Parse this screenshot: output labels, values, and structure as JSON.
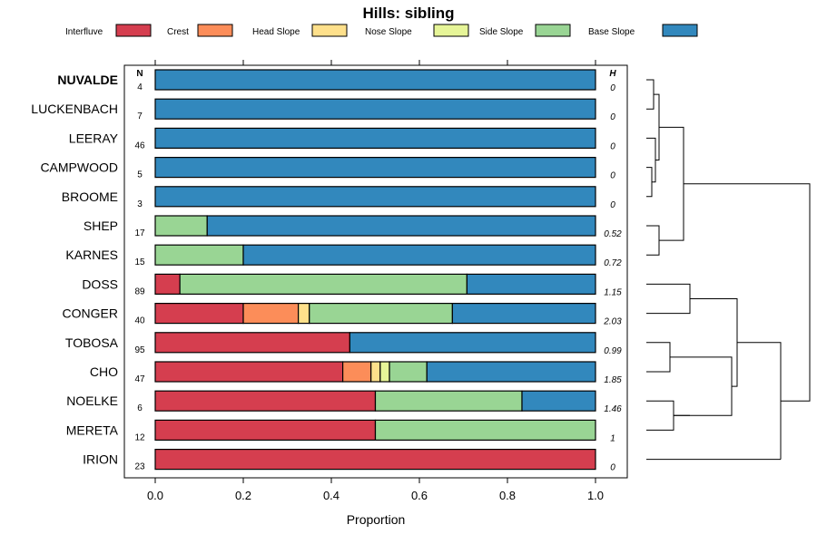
{
  "chart_data": {
    "type": "bar",
    "orientation": "horizontal",
    "stacked": true,
    "title": "Hills: sibling",
    "xlabel": "Proportion",
    "xlim": [
      0,
      1
    ],
    "xticks": [
      "0.0",
      "0.2",
      "0.4",
      "0.6",
      "0.8",
      "1.0"
    ],
    "n_header": "N",
    "h_header": "H",
    "legend_position": "top",
    "series": [
      {
        "name": "Interfluve",
        "color": "#D53E4F"
      },
      {
        "name": "Crest",
        "color": "#FC8D59"
      },
      {
        "name": "Head Slope",
        "color": "#FEE08B"
      },
      {
        "name": "Nose Slope",
        "color": "#E6F598"
      },
      {
        "name": "Side Slope",
        "color": "#99D594"
      },
      {
        "name": "Base Slope",
        "color": "#3288BD"
      }
    ],
    "categories": [
      {
        "name": "NUVALDE",
        "bold": true,
        "n": "4",
        "h": "0",
        "values": [
          0,
          0,
          0,
          0,
          0,
          1
        ]
      },
      {
        "name": "LUCKENBACH",
        "bold": false,
        "n": "7",
        "h": "0",
        "values": [
          0,
          0,
          0,
          0,
          0,
          1
        ]
      },
      {
        "name": "LEERAY",
        "bold": false,
        "n": "46",
        "h": "0",
        "values": [
          0,
          0,
          0,
          0,
          0,
          1
        ]
      },
      {
        "name": "CAMPWOOD",
        "bold": false,
        "n": "5",
        "h": "0",
        "values": [
          0,
          0,
          0,
          0,
          0,
          1
        ]
      },
      {
        "name": "BROOME",
        "bold": false,
        "n": "3",
        "h": "0",
        "values": [
          0,
          0,
          0,
          0,
          0,
          1
        ]
      },
      {
        "name": "SHEP",
        "bold": false,
        "n": "17",
        "h": "0.52",
        "values": [
          0,
          0,
          0,
          0,
          0.118,
          0.882
        ]
      },
      {
        "name": "KARNES",
        "bold": false,
        "n": "15",
        "h": "0.72",
        "values": [
          0,
          0,
          0,
          0,
          0.2,
          0.8
        ]
      },
      {
        "name": "DOSS",
        "bold": false,
        "n": "89",
        "h": "1.15",
        "values": [
          0.056,
          0,
          0,
          0,
          0.652,
          0.292
        ]
      },
      {
        "name": "CONGER",
        "bold": false,
        "n": "40",
        "h": "2.03",
        "values": [
          0.2,
          0.125,
          0.025,
          0,
          0.325,
          0.325
        ]
      },
      {
        "name": "TOBOSA",
        "bold": false,
        "n": "95",
        "h": "0.99",
        "values": [
          0.442,
          0,
          0,
          0,
          0,
          0.558
        ]
      },
      {
        "name": "CHO",
        "bold": false,
        "n": "47",
        "h": "1.85",
        "values": [
          0.426,
          0.064,
          0.021,
          0.021,
          0.085,
          0.383
        ]
      },
      {
        "name": "NOELKE",
        "bold": false,
        "n": "6",
        "h": "1.46",
        "values": [
          0.5,
          0,
          0,
          0,
          0.333,
          0.167
        ]
      },
      {
        "name": "MERETA",
        "bold": false,
        "n": "12",
        "h": "1",
        "values": [
          0.5,
          0,
          0,
          0,
          0.5,
          0
        ]
      },
      {
        "name": "IRION",
        "bold": false,
        "n": "23",
        "h": "0",
        "values": [
          1,
          0,
          0,
          0,
          0,
          0
        ]
      }
    ],
    "dendrogram": {
      "description": "hierarchical clustering of rows shown at right",
      "merges": [
        [
          0,
          1,
          0.04
        ],
        [
          3,
          4,
          0.04
        ],
        [
          2,
          "m1",
          0.08
        ],
        [
          "m0",
          "m2",
          0.1
        ],
        [
          5,
          6,
          0.14
        ],
        [
          "m3",
          "m4",
          0.28
        ],
        [
          12,
          13,
          0.0
        ],
        [
          10,
          11,
          0.0
        ]
      ]
    }
  }
}
